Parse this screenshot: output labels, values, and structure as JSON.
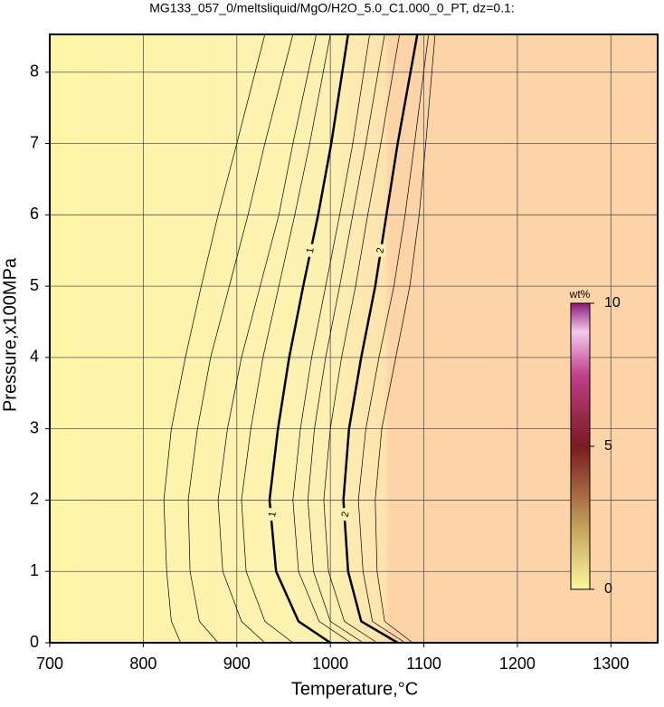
{
  "chart_data": {
    "type": "contour",
    "title": "MG133_057_0/meltsliquid/MgO/H2O_5.0_C1.000_0_PT, dz=0.1:",
    "x_label": "Temperature,°C",
    "y_label": "Pressure,x100MPa",
    "xlim": [
      700,
      1350
    ],
    "ylim": [
      0,
      8.53
    ],
    "xticks": [
      700,
      800,
      900,
      1000,
      1100,
      1200,
      1300
    ],
    "yticks": [
      0,
      1,
      2,
      3,
      4,
      5,
      6,
      7,
      8
    ],
    "grid": true,
    "pressures": [
      0,
      0.3,
      1,
      2,
      3,
      4,
      5,
      6,
      7,
      8.53
    ],
    "contours": [
      {
        "level": 0.2,
        "temps": [
          840,
          830,
          825,
          822,
          830,
          845,
          862,
          880,
          900,
          930
        ]
      },
      {
        "level": 0.3,
        "temps": [
          880,
          860,
          850,
          848,
          858,
          872,
          892,
          912,
          930,
          960
        ]
      },
      {
        "level": 0.5,
        "temps": [
          930,
          905,
          885,
          880,
          890,
          905,
          925,
          945,
          960,
          985
        ]
      },
      {
        "level": 0.7,
        "temps": [
          960,
          930,
          910,
          905,
          915,
          928,
          945,
          962,
          978,
          1000
        ]
      },
      {
        "level": 1,
        "temps": [
          1000,
          966,
          942,
          935,
          944,
          956,
          971,
          987,
          1001,
          1019
        ]
      },
      {
        "level": 1.3,
        "temps": [
          1022,
          988,
          966,
          960,
          968,
          980,
          995,
          1010,
          1024,
          1042
        ]
      },
      {
        "level": 1.5,
        "temps": [
          1035,
          1000,
          982,
          976,
          983,
          995,
          1010,
          1024,
          1038,
          1058
        ]
      },
      {
        "level": 1.7,
        "temps": [
          1050,
          1015,
          998,
          993,
          1000,
          1012,
          1027,
          1040,
          1054,
          1074
        ]
      },
      {
        "level": 2,
        "temps": [
          1072,
          1033,
          1019,
          1014,
          1020,
          1033,
          1048,
          1060,
          1072,
          1093
        ]
      },
      {
        "level": 2.2,
        "temps": [
          1080,
          1045,
          1035,
          1030,
          1038,
          1052,
          1068,
          1080,
          1090,
          1105
        ]
      },
      {
        "level": 2.4,
        "temps": [
          1088,
          1058,
          1050,
          1048,
          1055,
          1070,
          1085,
          1095,
          1102,
          1112
        ]
      }
    ],
    "labeled_levels": [
      1,
      2
    ],
    "colorbar": {
      "label": "wt%",
      "lim": [
        0,
        10
      ],
      "ticks": [
        0,
        5,
        10
      ]
    }
  }
}
